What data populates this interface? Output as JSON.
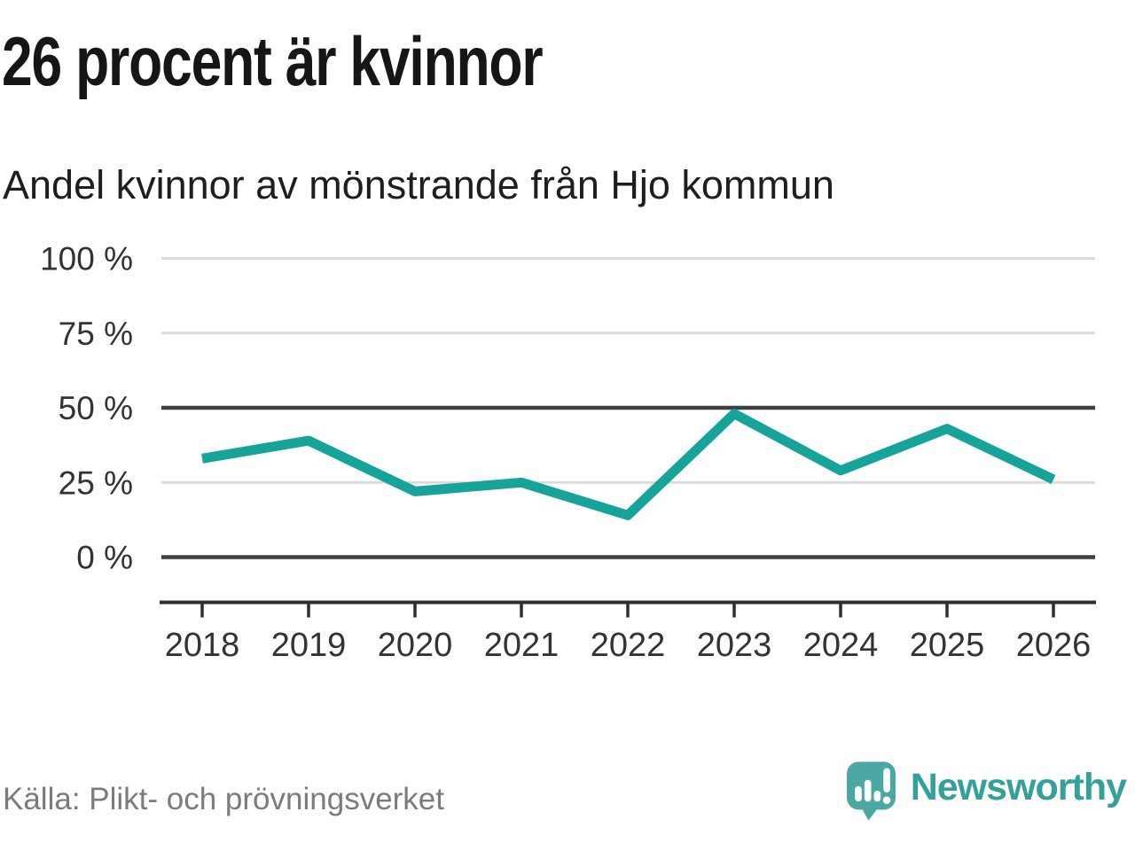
{
  "header": {
    "title": "26 procent är kvinnor",
    "subtitle": "Andel kvinnor av mönstrande från Hjo kommun"
  },
  "chart_data": {
    "type": "line",
    "title": "26 procent är kvinnor",
    "subtitle": "Andel kvinnor av mönstrande från Hjo kommun",
    "x": [
      "2018",
      "2019",
      "2020",
      "2021",
      "2022",
      "2023",
      "2024",
      "2025",
      "2026"
    ],
    "series": [
      {
        "name": "Andel kvinnor av mönstrande (%)",
        "values": [
          33,
          39,
          22,
          25,
          14,
          48,
          29,
          43,
          26
        ]
      }
    ],
    "unit": "%",
    "ylim": [
      0,
      100
    ],
    "yticks": [
      0,
      25,
      50,
      75,
      100
    ],
    "ytick_labels": [
      "0 %",
      "25 %",
      "50 %",
      "75 %",
      "100 %"
    ],
    "emphasized_gridlines": [
      0,
      50
    ],
    "grid": true,
    "legend": "none",
    "xlabel": "",
    "ylabel": ""
  },
  "footer": {
    "source": "Källa: Plikt- och prövningsverket",
    "brand": "Newsworthy"
  },
  "icons": {
    "brand_logo": "newsworthy-speech-bubble-bar-chart-icon"
  },
  "colors": {
    "line": "#16a39a",
    "grid_light": "#dcdcdc",
    "grid_dark": "#3f3f3f",
    "axis": "#2f2f2f",
    "tick_label": "#333333",
    "title": "#161616",
    "subtitle": "#1e1e1e",
    "source": "#7b7b7b",
    "brand_text": "#35a09a",
    "logo_bubble": "#4aa7a1",
    "logo_glyphs": "#ffffff"
  }
}
